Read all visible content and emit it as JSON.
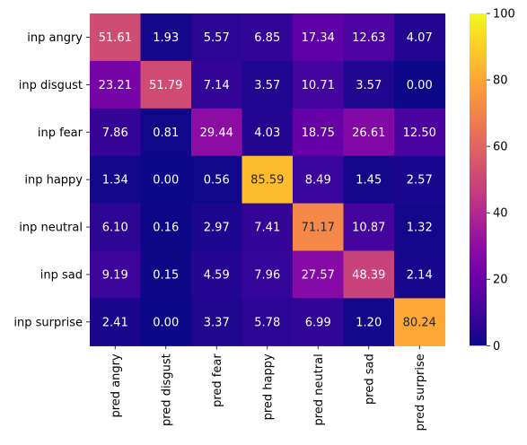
{
  "chart_data": {
    "type": "heatmap",
    "title": "",
    "xlabel": "",
    "ylabel": "",
    "x_categories": [
      "pred angry",
      "pred disgust",
      "pred fear",
      "pred happy",
      "pred neutral",
      "pred sad",
      "pred surprise"
    ],
    "y_categories": [
      "inp angry",
      "inp disgust",
      "inp fear",
      "inp happy",
      "inp neutral",
      "inp sad",
      "inp surprise"
    ],
    "values": [
      [
        51.61,
        1.93,
        5.57,
        6.85,
        17.34,
        12.63,
        4.07
      ],
      [
        23.21,
        51.79,
        7.14,
        3.57,
        10.71,
        3.57,
        0.0
      ],
      [
        7.86,
        0.81,
        29.44,
        4.03,
        18.75,
        26.61,
        12.5
      ],
      [
        1.34,
        0.0,
        0.56,
        85.59,
        8.49,
        1.45,
        2.57
      ],
      [
        6.1,
        0.16,
        2.97,
        7.41,
        71.17,
        10.87,
        1.32
      ],
      [
        9.19,
        0.15,
        4.59,
        7.96,
        27.57,
        48.39,
        2.14
      ],
      [
        2.41,
        0.0,
        3.37,
        5.78,
        6.99,
        1.2,
        80.24
      ]
    ],
    "value_labels": [
      [
        "51.61",
        "1.93",
        "5.57",
        "6.85",
        "17.34",
        "12.63",
        "4.07"
      ],
      [
        "23.21",
        "51.79",
        "7.14",
        "3.57",
        "10.71",
        "3.57",
        "0.00"
      ],
      [
        "7.86",
        "0.81",
        "29.44",
        "4.03",
        "18.75",
        "26.61",
        "12.50"
      ],
      [
        "1.34",
        "0.00",
        "0.56",
        "85.59",
        "8.49",
        "1.45",
        "2.57"
      ],
      [
        "6.10",
        "0.16",
        "2.97",
        "7.41",
        "71.17",
        "10.87",
        "1.32"
      ],
      [
        "9.19",
        "0.15",
        "4.59",
        "7.96",
        "27.57",
        "48.39",
        "2.14"
      ],
      [
        "2.41",
        "0.00",
        "3.37",
        "5.78",
        "6.99",
        "1.20",
        "80.24"
      ]
    ],
    "colormap": "plasma",
    "vmin": 0,
    "vmax": 100,
    "colorbar_ticks": [
      0,
      20,
      40,
      60,
      80,
      100
    ],
    "colorbar_tick_labels": [
      "0",
      "20",
      "40",
      "60",
      "80",
      "100"
    ],
    "colorbar_placement": "right",
    "grid": false
  }
}
